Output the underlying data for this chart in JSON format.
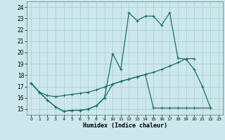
{
  "xlabel": "Humidex (Indice chaleur)",
  "bg_color": "#cce8ec",
  "grid_color": "#aacccc",
  "line_color": "#1a6e6e",
  "xlim": [
    -0.5,
    23.5
  ],
  "ylim": [
    14.5,
    24.5
  ],
  "xticks": [
    0,
    1,
    2,
    3,
    4,
    5,
    6,
    7,
    8,
    9,
    10,
    11,
    12,
    13,
    14,
    15,
    16,
    17,
    18,
    19,
    20,
    21,
    22,
    23
  ],
  "yticks": [
    15,
    16,
    17,
    18,
    19,
    20,
    21,
    22,
    23,
    24
  ],
  "line1_x": [
    0,
    1,
    2,
    3,
    4,
    5,
    6,
    7,
    8,
    9,
    10,
    11,
    12,
    13,
    14,
    15,
    16,
    17,
    18,
    19,
    20,
    21,
    22
  ],
  "line1_y": [
    17.3,
    16.5,
    15.8,
    15.2,
    14.8,
    14.9,
    14.9,
    15.0,
    15.3,
    16.0,
    19.9,
    18.5,
    23.5,
    22.8,
    23.2,
    23.2,
    22.4,
    23.5,
    19.5,
    19.4,
    18.5,
    17.0,
    15.1
  ],
  "line2_x": [
    0,
    1,
    2,
    3,
    4,
    5,
    6,
    7,
    8,
    9,
    10,
    11,
    12,
    13,
    14,
    15,
    16,
    17,
    18,
    19,
    20
  ],
  "line2_y": [
    17.3,
    16.5,
    16.2,
    16.1,
    16.2,
    16.3,
    16.4,
    16.5,
    16.7,
    16.95,
    17.2,
    17.45,
    17.65,
    17.85,
    18.05,
    18.25,
    18.5,
    18.8,
    19.1,
    19.45,
    19.45
  ],
  "line3_x": [
    0,
    1,
    2,
    3,
    4,
    5,
    6,
    7,
    8,
    9,
    10,
    11,
    12,
    13,
    14,
    15,
    16,
    17,
    18,
    19,
    20,
    22
  ],
  "line3_y": [
    17.3,
    16.5,
    15.8,
    15.2,
    14.8,
    14.9,
    14.9,
    15.0,
    15.3,
    16.0,
    17.2,
    17.45,
    17.65,
    17.85,
    18.05,
    15.1,
    15.1,
    15.1,
    15.1,
    15.1,
    15.1,
    15.1
  ]
}
